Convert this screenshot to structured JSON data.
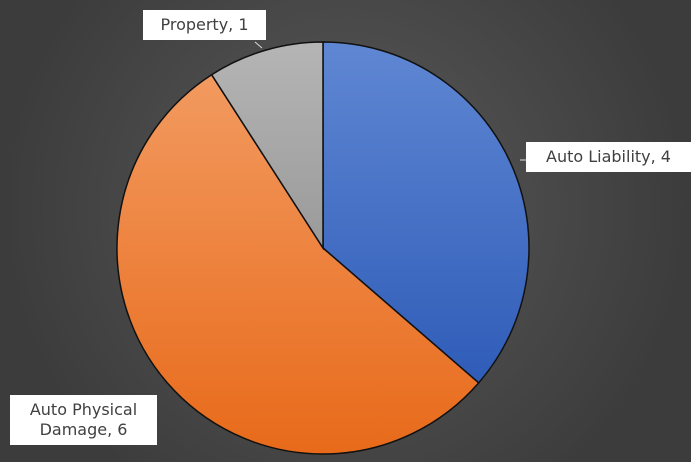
{
  "chart_data": {
    "type": "pie",
    "labels": [
      "Auto Liability, 4",
      "Auto Physical Damage, 6",
      "Property, 1"
    ],
    "values": [
      4,
      6,
      1
    ],
    "colors": [
      "#4472c4",
      "#ed7d31",
      "#a5a5a5"
    ]
  }
}
